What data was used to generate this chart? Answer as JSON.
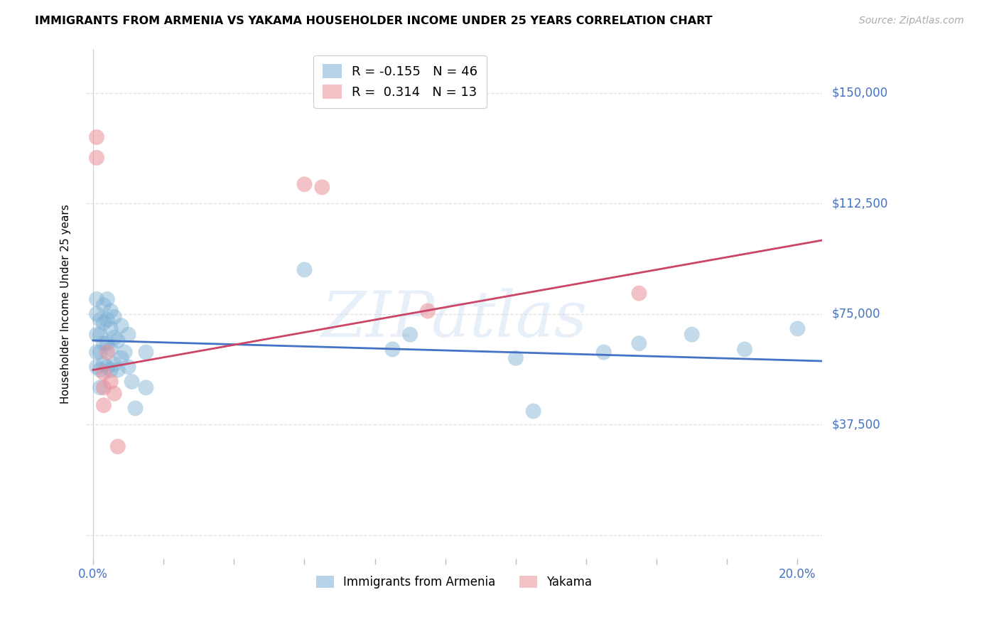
{
  "title": "IMMIGRANTS FROM ARMENIA VS YAKAMA HOUSEHOLDER INCOME UNDER 25 YEARS CORRELATION CHART",
  "source": "Source: ZipAtlas.com",
  "ylabel": "Householder Income Under 25 years",
  "xlim": [
    -0.002,
    0.207
  ],
  "ylim": [
    -8000,
    165000
  ],
  "yticks": [
    0,
    37500,
    75000,
    112500,
    150000
  ],
  "ytick_labels": [
    "",
    "$37,500",
    "$75,000",
    "$112,500",
    "$150,000"
  ],
  "xticks": [
    0.0,
    0.02,
    0.04,
    0.06,
    0.08,
    0.1,
    0.12,
    0.14,
    0.16,
    0.18,
    0.2
  ],
  "watermark": "ZIPatlas",
  "armenia_color": "#7bafd4",
  "yakama_color": "#e8909a",
  "armenia_scatter_x": [
    0.001,
    0.001,
    0.001,
    0.001,
    0.001,
    0.002,
    0.002,
    0.002,
    0.002,
    0.002,
    0.003,
    0.003,
    0.003,
    0.003,
    0.004,
    0.004,
    0.004,
    0.004,
    0.005,
    0.005,
    0.005,
    0.005,
    0.006,
    0.006,
    0.006,
    0.007,
    0.007,
    0.008,
    0.008,
    0.009,
    0.01,
    0.01,
    0.011,
    0.012,
    0.015,
    0.015,
    0.06,
    0.085,
    0.09,
    0.12,
    0.125,
    0.145,
    0.155,
    0.17,
    0.185,
    0.2
  ],
  "armenia_scatter_y": [
    80000,
    75000,
    68000,
    62000,
    57000,
    73000,
    68000,
    62000,
    56000,
    50000,
    78000,
    72000,
    65000,
    58000,
    80000,
    73000,
    65000,
    57000,
    76000,
    70000,
    63000,
    56000,
    74000,
    67000,
    58000,
    66000,
    56000,
    71000,
    60000,
    62000,
    68000,
    57000,
    52000,
    43000,
    62000,
    50000,
    90000,
    63000,
    68000,
    60000,
    42000,
    62000,
    65000,
    68000,
    63000,
    70000
  ],
  "yakama_scatter_x": [
    0.001,
    0.001,
    0.003,
    0.003,
    0.003,
    0.004,
    0.005,
    0.006,
    0.007,
    0.06,
    0.065,
    0.095,
    0.155
  ],
  "yakama_scatter_y": [
    135000,
    128000,
    55000,
    50000,
    44000,
    62000,
    52000,
    48000,
    30000,
    119000,
    118000,
    76000,
    82000
  ],
  "armenia_line_x": [
    0.0,
    0.207
  ],
  "armenia_line_y": [
    66000,
    59000
  ],
  "yakama_line_x": [
    0.0,
    0.207
  ],
  "yakama_line_y": [
    56000,
    100000
  ],
  "armenia_line_color": "#4472c4",
  "yakama_line_color": "#cc4466",
  "grid_color": "#e0e0e0",
  "legend_R_armenia": "R = -0.155",
  "legend_N_armenia": "N = 46",
  "legend_R_yakama": "R =  0.314",
  "legend_N_yakama": "N = 13",
  "bottom_legend_armenia": "Immigrants from Armenia",
  "bottom_legend_yakama": "Yakama"
}
